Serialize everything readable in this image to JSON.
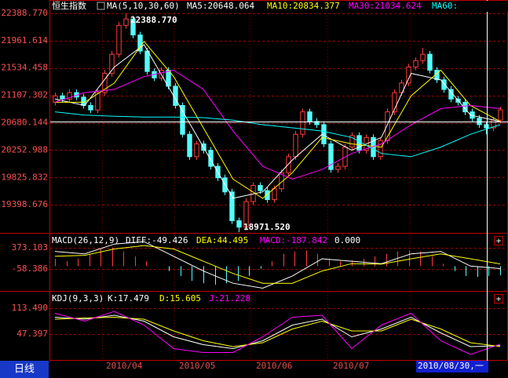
{
  "header": {
    "title": "恒生指数",
    "indicator": "MA(5,10,30,60)"
  },
  "chart_data": [
    {
      "type": "candlestick",
      "up_color": "#ff3c3c",
      "down_color": "#54fcfc",
      "ylim": [
        18960,
        22535
      ],
      "yticks": [
        {
          "value": 22388.77,
          "label": "22388.770"
        },
        21961.614,
        21534.458,
        21107.302,
        20680.144,
        20252.988,
        19825.832,
        19398.676
      ],
      "grid": true,
      "open": [
        21000,
        21100,
        21050,
        21150,
        21080,
        20950,
        20880,
        21150,
        21450,
        21750,
        22200,
        22300,
        22050,
        21800,
        21480,
        21380,
        21500,
        21250,
        20950,
        20500,
        20150,
        20350,
        20250,
        20000,
        19820,
        19600,
        19150,
        19050,
        19450,
        19700,
        19620,
        19480,
        19650,
        19900,
        20150,
        20500,
        20850,
        20700,
        20650,
        20350,
        19950,
        20000,
        20300,
        20480,
        20250,
        20450,
        20150,
        20400,
        20850,
        21150,
        21300,
        21550,
        21650,
        21750,
        21500,
        21350,
        21200,
        21050,
        21000,
        20850,
        20750,
        20650,
        20600,
        20720
      ],
      "high": [
        21150,
        21150,
        21200,
        21200,
        21130,
        21000,
        21200,
        21500,
        21800,
        22250,
        22388.77,
        22350,
        22100,
        21850,
        21530,
        21550,
        21550,
        21300,
        21000,
        20550,
        20400,
        20400,
        20300,
        20050,
        19870,
        19650,
        19200,
        19500,
        19750,
        19750,
        19670,
        19700,
        19950,
        20200,
        20550,
        20900,
        20900,
        20750,
        20700,
        20400,
        20050,
        20350,
        20530,
        20530,
        20500,
        20500,
        20450,
        20900,
        21200,
        21350,
        21600,
        21700,
        21850,
        21800,
        21550,
        21400,
        21250,
        21100,
        21050,
        20900,
        20800,
        20700,
        20770,
        20930
      ],
      "low": [
        20950,
        21000,
        21000,
        21030,
        20900,
        20830,
        20830,
        21100,
        21400,
        21700,
        22150,
        22000,
        21750,
        21430,
        21330,
        21330,
        21200,
        20900,
        20450,
        20100,
        20100,
        20200,
        19950,
        19770,
        19550,
        19100,
        18971.52,
        19000,
        19400,
        19570,
        19430,
        19430,
        19600,
        19850,
        20100,
        20450,
        20650,
        20600,
        20300,
        19900,
        19900,
        19950,
        20250,
        20200,
        20200,
        20100,
        20100,
        20350,
        20800,
        21100,
        21250,
        21500,
        21600,
        21450,
        21300,
        21150,
        21000,
        20950,
        20800,
        20700,
        20600,
        20500,
        20550,
        20670
      ],
      "close": [
        21100,
        21050,
        21150,
        21080,
        20950,
        20880,
        21150,
        21450,
        21750,
        22200,
        22300,
        22050,
        21800,
        21480,
        21380,
        21500,
        21250,
        20950,
        20500,
        20150,
        20350,
        20250,
        20000,
        19820,
        19600,
        19150,
        19050,
        19450,
        19700,
        19620,
        19480,
        19650,
        19900,
        20150,
        20500,
        20850,
        20700,
        20650,
        20350,
        19950,
        20000,
        20300,
        20480,
        20250,
        20450,
        20150,
        20400,
        20850,
        21150,
        21300,
        21550,
        21650,
        21750,
        21500,
        21350,
        21200,
        21050,
        21000,
        20850,
        20750,
        20650,
        20600,
        20720,
        20880
      ],
      "annotations": [
        {
          "value": 22388.77,
          "label": "22388.770"
        },
        {
          "value": 18971.52,
          "label": "18971.520"
        }
      ],
      "series": [
        {
          "label": "MA5:20648.064",
          "color": "#ffffff",
          "values": [
            21050,
            20950,
            21550,
            21900,
            21100,
            20300,
            19500,
            19600,
            20100,
            20500,
            20250,
            20450,
            21450,
            21350,
            20800,
            20700
          ]
        },
        {
          "label": "MA10:20834.377",
          "color": "#ffff00",
          "values": [
            21000,
            21000,
            21300,
            21950,
            21400,
            20600,
            19800,
            19500,
            19900,
            20450,
            20350,
            20300,
            21100,
            21500,
            20950,
            20700
          ]
        },
        {
          "label": "MA30:21034.624",
          "color": "#ff00ff",
          "values": [
            21000,
            21150,
            21200,
            21400,
            21500,
            21200,
            20550,
            20000,
            19800,
            19950,
            20200,
            20350,
            20650,
            20900,
            20950,
            20900
          ]
        },
        {
          "label": "MA60:",
          "color": "#00ffff",
          "values": [
            20850,
            20800,
            20780,
            20770,
            20770,
            20760,
            20720,
            20650,
            20600,
            20550,
            20450,
            20200,
            20150,
            20300,
            20500,
            20650
          ]
        }
      ]
    },
    {
      "type": "macd",
      "title": "MACD(26,12,9)",
      "extra_label": "0.000",
      "ylim": [
        -490,
        661
      ],
      "yticks": [
        373.103,
        -58.386
      ],
      "grid": true,
      "bars": {
        "label": "MACD:-187.842",
        "up_color": "#ff3c3c",
        "down_color": "#54fcfc",
        "values": [
          150,
          100,
          150,
          250,
          350,
          380,
          300,
          200,
          100,
          0,
          -100,
          -200,
          -300,
          -350,
          -380,
          -350,
          -300,
          -200,
          -50,
          100,
          250,
          300,
          320,
          250,
          150,
          100,
          120,
          150,
          200,
          250,
          300,
          320,
          300,
          200,
          50,
          -100,
          -200,
          -220,
          -200,
          -187.842
        ]
      },
      "series": [
        {
          "label": "DIFF:-49.426",
          "color": "#ffffff",
          "values": [
            300,
            250,
            450,
            500,
            200,
            -100,
            -350,
            -450,
            -200,
            150,
            100,
            50,
            250,
            300,
            0,
            -49.426
          ]
        },
        {
          "label": "DEA:44.495",
          "color": "#ffff00",
          "values": [
            200,
            220,
            350,
            420,
            350,
            100,
            -150,
            -350,
            -350,
            -100,
            50,
            40,
            150,
            250,
            150,
            44.495
          ]
        }
      ]
    },
    {
      "type": "kdj",
      "title": "KDJ(9,3,3)",
      "ylim": [
        -21,
        155
      ],
      "yticks": [
        {
          "value": 113.49,
          "label": "113.490"
        },
        47.397
      ],
      "grid": true,
      "series": [
        {
          "label": "K:17.479",
          "color": "#ffffff",
          "values": [
            90,
            85,
            95,
            80,
            40,
            20,
            10,
            30,
            70,
            85,
            40,
            60,
            90,
            50,
            15,
            17.479
          ]
        },
        {
          "label": "D:15.605",
          "color": "#ffff00",
          "values": [
            85,
            88,
            90,
            85,
            55,
            30,
            15,
            25,
            60,
            80,
            55,
            55,
            85,
            60,
            25,
            15.605
          ]
        },
        {
          "label": "J:21.228",
          "color": "#ff00ff",
          "values": [
            100,
            80,
            105,
            70,
            10,
            0,
            0,
            40,
            90,
            95,
            10,
            70,
            100,
            30,
            -5,
            21.228
          ]
        }
      ]
    }
  ],
  "footer": {
    "period": "日线",
    "dates": [
      "2010/04",
      "2010/05",
      "2010/06",
      "2010/07"
    ],
    "cursor_date": "2010/08/30,一"
  }
}
